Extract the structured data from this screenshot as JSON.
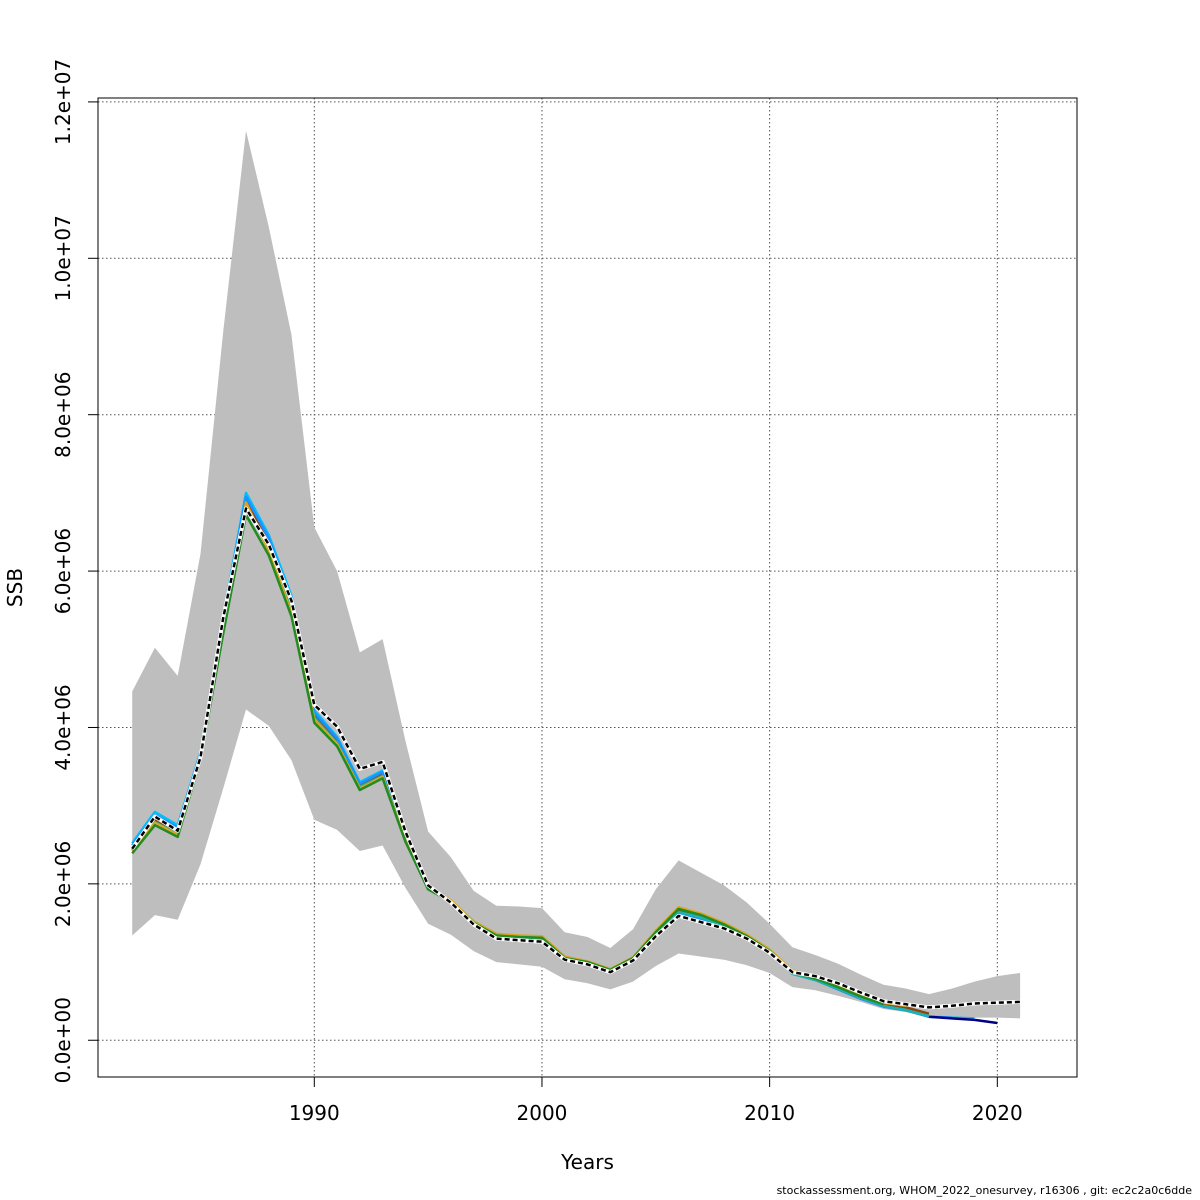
{
  "chart_data": {
    "type": "line",
    "xlabel": "Years",
    "ylabel": "SSB",
    "xlim": [
      1980.5,
      2023.5
    ],
    "ylim": [
      -470000,
      12050000
    ],
    "x_ticks": [
      1990,
      2000,
      2010,
      2020
    ],
    "y_ticks": [
      0,
      2000000,
      4000000,
      6000000,
      8000000,
      10000000,
      12000000
    ],
    "x_tick_labels": [
      "1990",
      "2000",
      "2010",
      "2020"
    ],
    "y_tick_labels": [
      "0.0e+00",
      "2.0e+06",
      "4.0e+06",
      "6.0e+06",
      "8.0e+06",
      "1.0e+07",
      "1.2e+07"
    ],
    "grid": true,
    "confidence_band": {
      "color": "#bebebe",
      "x": [
        1982,
        1983,
        1984,
        1985,
        1986,
        1987,
        1988,
        1989,
        1990,
        1991,
        1992,
        1993,
        1994,
        1995,
        1996,
        1997,
        1998,
        1999,
        2000,
        2001,
        2002,
        2003,
        2004,
        2005,
        2006,
        2007,
        2008,
        2009,
        2010,
        2011,
        2012,
        2013,
        2014,
        2015,
        2016,
        2017,
        2018,
        2019,
        2020,
        2021
      ],
      "upper": [
        4460000,
        5020000,
        4660000,
        6220000,
        9060000,
        11630000,
        10400000,
        9020000,
        6560000,
        6000000,
        4960000,
        5130000,
        3830000,
        2670000,
        2340000,
        1910000,
        1720000,
        1710000,
        1690000,
        1380000,
        1320000,
        1180000,
        1420000,
        1930000,
        2300000,
        2140000,
        1980000,
        1760000,
        1490000,
        1190000,
        1090000,
        980000,
        840000,
        710000,
        660000,
        590000,
        660000,
        750000,
        820000,
        860000
      ],
      "lower": [
        1340000,
        1600000,
        1540000,
        2250000,
        3220000,
        4230000,
        4020000,
        3580000,
        2820000,
        2690000,
        2420000,
        2490000,
        1950000,
        1490000,
        1350000,
        1140000,
        1000000,
        970000,
        940000,
        780000,
        730000,
        650000,
        750000,
        950000,
        1110000,
        1070000,
        1030000,
        960000,
        860000,
        680000,
        640000,
        570000,
        490000,
        400000,
        360000,
        320000,
        300000,
        290000,
        290000,
        280000
      ]
    },
    "series": [
      {
        "color": "#00bfff",
        "x": [
          1982,
          1983,
          1984,
          1985,
          1986,
          1987,
          1988,
          1989,
          1990,
          1991,
          1992,
          1993,
          1994,
          1995,
          1996,
          1997,
          1998,
          1999,
          2000,
          2001,
          2002,
          2003,
          2004,
          2005,
          2006,
          2007,
          2008,
          2009,
          2010,
          2011,
          2012,
          2013,
          2014,
          2015,
          2016,
          2017,
          2018,
          2019
        ],
        "y": [
          2520000,
          2920000,
          2750000,
          3680000,
          5420000,
          7000000,
          6460000,
          5680000,
          4220000,
          3880000,
          3300000,
          3450000,
          2620000,
          1960000,
          1780000,
          1520000,
          1350000,
          1330000,
          1310000,
          1060000,
          990000,
          890000,
          1040000,
          1360000,
          1620000,
          1560000,
          1450000,
          1310000,
          1140000,
          860000,
          780000,
          660000,
          540000,
          440000,
          390000,
          300000,
          290000,
          280000
        ]
      },
      {
        "color": "#8b4513",
        "x": [
          1982,
          1983,
          1984,
          1985,
          1986,
          1987,
          1988,
          1989,
          1990,
          1991,
          1992,
          1993,
          1994,
          1995,
          1996,
          1997,
          1998,
          1999,
          2000,
          2001,
          2002,
          2003,
          2004,
          2005,
          2006,
          2007,
          2008,
          2009,
          2010,
          2011,
          2012,
          2013,
          2014,
          2015,
          2016,
          2017
        ],
        "y": [
          2460000,
          2820000,
          2680000,
          3650000,
          5330000,
          6900000,
          6350000,
          5560000,
          4160000,
          3830000,
          3260000,
          3400000,
          2580000,
          1950000,
          1780000,
          1510000,
          1350000,
          1320000,
          1310000,
          1060000,
          1000000,
          900000,
          1050000,
          1380000,
          1650000,
          1580000,
          1480000,
          1330000,
          1150000,
          880000,
          800000,
          690000,
          570000,
          470000,
          420000,
          340000
        ]
      },
      {
        "color": "#1e90ff",
        "x": [
          1982,
          1983,
          1984,
          1985,
          1986,
          1987,
          1988,
          1989,
          1990,
          1991,
          1992,
          1993,
          1994,
          1995,
          1996,
          1997,
          1998,
          1999,
          2000,
          2001,
          2002,
          2003,
          2004,
          2005,
          2006,
          2007,
          2008,
          2009,
          2010,
          2011,
          2012,
          2013,
          2014,
          2015,
          2016,
          2017,
          2018
        ],
        "y": [
          2490000,
          2880000,
          2720000,
          3670000,
          5380000,
          6950000,
          6420000,
          5620000,
          4190000,
          3860000,
          3280000,
          3430000,
          2600000,
          1950000,
          1770000,
          1500000,
          1330000,
          1310000,
          1290000,
          1040000,
          980000,
          880000,
          1030000,
          1350000,
          1610000,
          1550000,
          1440000,
          1300000,
          1130000,
          850000,
          770000,
          650000,
          530000,
          430000,
          380000,
          300000,
          290000
        ]
      },
      {
        "color": "#20b2aa",
        "x": [
          1982,
          1983,
          1984,
          1985,
          1986,
          1987,
          1988,
          1989,
          1990,
          1991,
          1992,
          1993,
          1994,
          1995,
          1996,
          1997,
          1998,
          1999,
          2000,
          2001,
          2002,
          2003,
          2004,
          2005,
          2006,
          2007,
          2008,
          2009,
          2010,
          2011,
          2012,
          2013,
          2014,
          2015,
          2016,
          2017
        ],
        "y": [
          2430000,
          2790000,
          2640000,
          3620000,
          5300000,
          6820000,
          6290000,
          5500000,
          4130000,
          3800000,
          3240000,
          3380000,
          2570000,
          1940000,
          1770000,
          1500000,
          1340000,
          1310000,
          1300000,
          1040000,
          990000,
          890000,
          1040000,
          1370000,
          1640000,
          1570000,
          1460000,
          1310000,
          1130000,
          850000,
          770000,
          660000,
          540000,
          440000,
          380000,
          310000
        ]
      },
      {
        "color": "#daa520",
        "x": [
          1982,
          1983,
          1984,
          1985,
          1986,
          1987,
          1988,
          1989,
          1990,
          1991,
          1992,
          1993,
          1994,
          1995,
          1996,
          1997,
          1998,
          1999,
          2000,
          2001,
          2002,
          2003,
          2004,
          2005,
          2006,
          2007,
          2008,
          2009,
          2010,
          2011,
          2012,
          2013,
          2014,
          2015,
          2016
        ],
        "y": [
          2420000,
          2780000,
          2630000,
          3610000,
          5250000,
          6880000,
          6260000,
          5470000,
          4100000,
          3790000,
          3220000,
          3370000,
          2560000,
          1960000,
          1790000,
          1520000,
          1360000,
          1340000,
          1330000,
          1070000,
          1010000,
          910000,
          1060000,
          1400000,
          1700000,
          1620000,
          1500000,
          1350000,
          1160000,
          890000,
          810000,
          700000,
          580000,
          480000,
          440000
        ]
      },
      {
        "color": "#228b22",
        "x": [
          1982,
          1983,
          1984,
          1985,
          1986,
          1987,
          1988,
          1989,
          1990,
          1991,
          1992,
          1993,
          1994,
          1995,
          1996,
          1997,
          1998,
          1999,
          2000,
          2001,
          2002,
          2003,
          2004,
          2005,
          2006,
          2007,
          2008,
          2009,
          2010,
          2011,
          2012,
          2013,
          2014,
          2015
        ],
        "y": [
          2390000,
          2750000,
          2600000,
          3590000,
          5200000,
          6720000,
          6200000,
          5420000,
          4060000,
          3760000,
          3200000,
          3350000,
          2540000,
          1930000,
          1770000,
          1500000,
          1340000,
          1320000,
          1310000,
          1050000,
          1000000,
          900000,
          1050000,
          1380000,
          1680000,
          1600000,
          1480000,
          1330000,
          1140000,
          870000,
          790000,
          680000,
          560000,
          460000
        ]
      },
      {
        "color": "#000080",
        "x": [
          2017,
          2018,
          2019,
          2020
        ],
        "y": [
          300000,
          280000,
          260000,
          220000
        ]
      },
      {
        "color": "#000000",
        "dashed": true,
        "x": [
          1982,
          1983,
          1984,
          1985,
          1986,
          1987,
          1988,
          1989,
          1990,
          1991,
          1992,
          1993,
          1994,
          1995,
          1996,
          1997,
          1998,
          1999,
          2000,
          2001,
          2002,
          2003,
          2004,
          2005,
          2006,
          2007,
          2008,
          2009,
          2010,
          2011,
          2012,
          2013,
          2014,
          2015,
          2016,
          2017,
          2018,
          2019,
          2020,
          2021
        ],
        "y": [
          2450000,
          2860000,
          2680000,
          3620000,
          5400000,
          6800000,
          6340000,
          5620000,
          4290000,
          4010000,
          3470000,
          3560000,
          2670000,
          1980000,
          1760000,
          1480000,
          1300000,
          1280000,
          1260000,
          1030000,
          970000,
          870000,
          1020000,
          1330000,
          1590000,
          1510000,
          1430000,
          1300000,
          1120000,
          870000,
          820000,
          730000,
          610000,
          500000,
          460000,
          420000,
          440000,
          470000,
          480000,
          490000
        ]
      }
    ]
  },
  "footer": {
    "text": "stockassessment.org, WHOM_2022_onesurvey, r16306 , git: ec2c2a0c6dde"
  }
}
